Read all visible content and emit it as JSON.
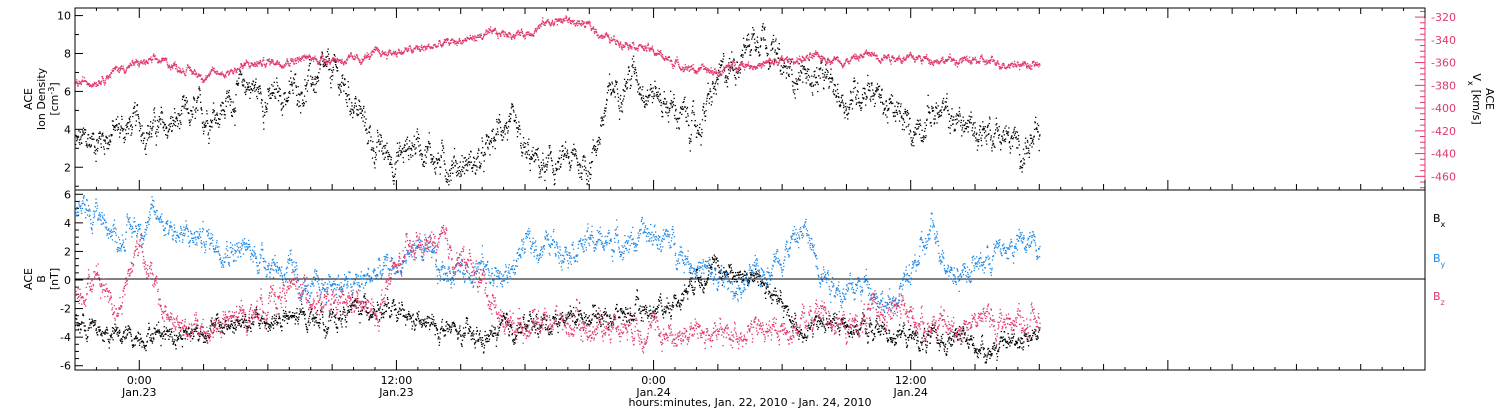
{
  "chart_data": [
    {
      "type": "scatter",
      "panel": "top",
      "xlabel": "hours:minutes, Jan. 22, 2010 - Jan. 24, 2010",
      "xlim": [
        -3,
        60
      ],
      "x_ticks": [
        {
          "hour": 0,
          "time": "0:00",
          "date": "Jan.23"
        },
        {
          "hour": 12,
          "time": "12:00",
          "date": "Jan.23"
        },
        {
          "hour": 24,
          "time": "0:00",
          "date": "Jan.24"
        },
        {
          "hour": 36,
          "time": "12:00",
          "date": "Jan.24"
        }
      ],
      "left_axis": {
        "label_lines": [
          "ACE",
          "Ion Density"
        ],
        "unit_base": "[cm",
        "unit_sup": "-3",
        "unit_close": "]",
        "ylim": [
          0.8,
          10.4
        ],
        "ticks": [
          "2",
          "4",
          "6",
          "8",
          "10"
        ],
        "color": "#000000"
      },
      "right_axis": {
        "label_line": "ACE",
        "label_base": "V",
        "label_sub": "x",
        "unit": "[km/s]",
        "ylim": [
          -472,
          -312
        ],
        "ticks": [
          "-320",
          "-340",
          "-360",
          "-380",
          "-400",
          "-420",
          "-440",
          "-460"
        ],
        "color": "#e0386a"
      },
      "series": [
        {
          "axis": "left",
          "color": "#000000",
          "x": [
            -3,
            -2,
            -1,
            0,
            1,
            2,
            3,
            4,
            5,
            6,
            7,
            8,
            9,
            10,
            11,
            12,
            13,
            14,
            15,
            16,
            17,
            18,
            19,
            20,
            21,
            22,
            23,
            24,
            25,
            26,
            27,
            28,
            29,
            30,
            31,
            32,
            33,
            34,
            35,
            36,
            37,
            38,
            39,
            40,
            41,
            42
          ],
          "y": [
            3.2,
            3.5,
            4.0,
            4.3,
            4.0,
            4.5,
            4.8,
            5.3,
            6.5,
            5.5,
            6.0,
            6.5,
            7.0,
            5.5,
            3.0,
            2.5,
            3.5,
            2.3,
            2.2,
            2.3,
            4.5,
            2.5,
            1.9,
            2.3,
            2.2,
            6.0,
            7.0,
            6.0,
            5.0,
            4.0,
            6.5,
            8.0,
            9.5,
            7.0,
            7.0,
            6.5,
            5.5,
            6.5,
            5.0,
            4.0,
            5.0,
            4.5,
            4.0,
            4.0,
            3.0,
            3.3
          ]
        },
        {
          "axis": "right",
          "color": "#e0386a",
          "x": [
            -3,
            -2,
            -1,
            0,
            1,
            2,
            3,
            4,
            5,
            6,
            7,
            8,
            9,
            10,
            11,
            12,
            13,
            14,
            15,
            16,
            17,
            18,
            19,
            20,
            21,
            22,
            23,
            24,
            25,
            26,
            27,
            28,
            29,
            30,
            31,
            32,
            33,
            34,
            35,
            36,
            37,
            38,
            39,
            40,
            41,
            42
          ],
          "y": [
            -378,
            -375,
            -365,
            -360,
            -358,
            -365,
            -371,
            -368,
            -362,
            -359,
            -357,
            -356,
            -356,
            -358,
            -352,
            -350,
            -348,
            -344,
            -340,
            -336,
            -334,
            -334,
            -324,
            -322,
            -328,
            -340,
            -342,
            -350,
            -360,
            -366,
            -368,
            -360,
            -362,
            -358,
            -356,
            -355,
            -358,
            -352,
            -354,
            -356,
            -356,
            -358,
            -358,
            -360,
            -360,
            -362
          ]
        }
      ]
    },
    {
      "type": "scatter",
      "panel": "bottom",
      "xlim": [
        -3,
        60
      ],
      "left_axis": {
        "label_lines": [
          "ACE",
          "B"
        ],
        "unit": "[nT]",
        "ylim": [
          -6.3,
          6.3
        ],
        "ticks": [
          "6",
          "4",
          "2",
          "0",
          "-2",
          "-4",
          "-6"
        ],
        "color": "#000000"
      },
      "legend_position": "right",
      "series": [
        {
          "name_base": "B",
          "name_sub": "x",
          "color": "#000000",
          "x": [
            -3,
            -2,
            -1,
            0,
            1,
            2,
            3,
            4,
            5,
            6,
            7,
            8,
            9,
            10,
            11,
            12,
            13,
            14,
            15,
            16,
            17,
            18,
            19,
            20,
            21,
            22,
            23,
            24,
            25,
            26,
            27,
            28,
            29,
            30,
            31,
            32,
            33,
            34,
            35,
            36,
            37,
            38,
            39,
            40,
            41,
            42
          ],
          "y": [
            -2.8,
            -3.5,
            -4.0,
            -3.8,
            -3.5,
            -3.7,
            -3.5,
            -3.2,
            -3.0,
            -2.8,
            -2.8,
            -2.5,
            -2.8,
            -2.0,
            -1.8,
            -2.5,
            -3.0,
            -3.3,
            -3.8,
            -4.2,
            -3.5,
            -3.2,
            -3.0,
            -2.5,
            -2.3,
            -2.5,
            -2.2,
            -2.0,
            -1.5,
            0.5,
            0.8,
            0.5,
            0.0,
            -2.0,
            -3.5,
            -3.0,
            -3.0,
            -3.5,
            -3.5,
            -4.0,
            -4.3,
            -4.0,
            -4.5,
            -4.8,
            -4.0,
            -3.5
          ]
        },
        {
          "name_base": "B",
          "name_sub": "y",
          "color": "#1e88e5",
          "x": [
            -3,
            -2,
            -1,
            0,
            1,
            2,
            3,
            4,
            5,
            6,
            7,
            8,
            9,
            10,
            11,
            12,
            13,
            14,
            15,
            16,
            17,
            18,
            19,
            20,
            21,
            22,
            23,
            24,
            25,
            26,
            27,
            28,
            29,
            30,
            31,
            32,
            33,
            34,
            35,
            36,
            37,
            38,
            39,
            40,
            41,
            42
          ],
          "y": [
            4.8,
            4.8,
            3.0,
            4.0,
            4.5,
            3.0,
            3.0,
            2.5,
            2.0,
            1.5,
            0.5,
            -1.0,
            0.0,
            -0.5,
            0.5,
            1.0,
            2.5,
            0.5,
            1.0,
            1.0,
            0.0,
            2.5,
            2.5,
            2.5,
            2.7,
            2.8,
            2.8,
            3.2,
            2.5,
            1.0,
            0.0,
            -0.5,
            0.5,
            2.0,
            3.5,
            0.5,
            -1.0,
            0.0,
            -2.0,
            0.5,
            3.5,
            0.5,
            1.0,
            2.0,
            2.5,
            2.5
          ]
        },
        {
          "name_base": "B",
          "name_sub": "z",
          "color": "#e0386a",
          "x": [
            -3,
            -2,
            -1,
            0,
            1,
            2,
            3,
            4,
            5,
            6,
            7,
            8,
            9,
            10,
            11,
            12,
            13,
            14,
            15,
            16,
            17,
            18,
            19,
            20,
            21,
            22,
            23,
            24,
            25,
            26,
            27,
            28,
            29,
            30,
            31,
            32,
            33,
            34,
            35,
            36,
            37,
            38,
            39,
            40,
            41,
            42
          ],
          "y": [
            -1.0,
            0.5,
            -2.0,
            3.0,
            -2.0,
            -3.5,
            -3.5,
            -3.0,
            -2.5,
            -1.5,
            -0.5,
            -1.0,
            -2.0,
            -1.5,
            -2.5,
            1.0,
            2.5,
            2.5,
            1.5,
            0.0,
            -3.0,
            -3.0,
            -2.5,
            -3.0,
            -3.5,
            -3.0,
            -3.0,
            -3.5,
            -3.8,
            -3.5,
            -4.0,
            -3.5,
            -3.5,
            -3.5,
            -3.0,
            -2.0,
            -3.5,
            -2.5,
            -2.0,
            -2.5,
            -3.0,
            -3.5,
            -2.5,
            -3.0,
            -2.5,
            -3.0
          ]
        }
      ]
    }
  ]
}
